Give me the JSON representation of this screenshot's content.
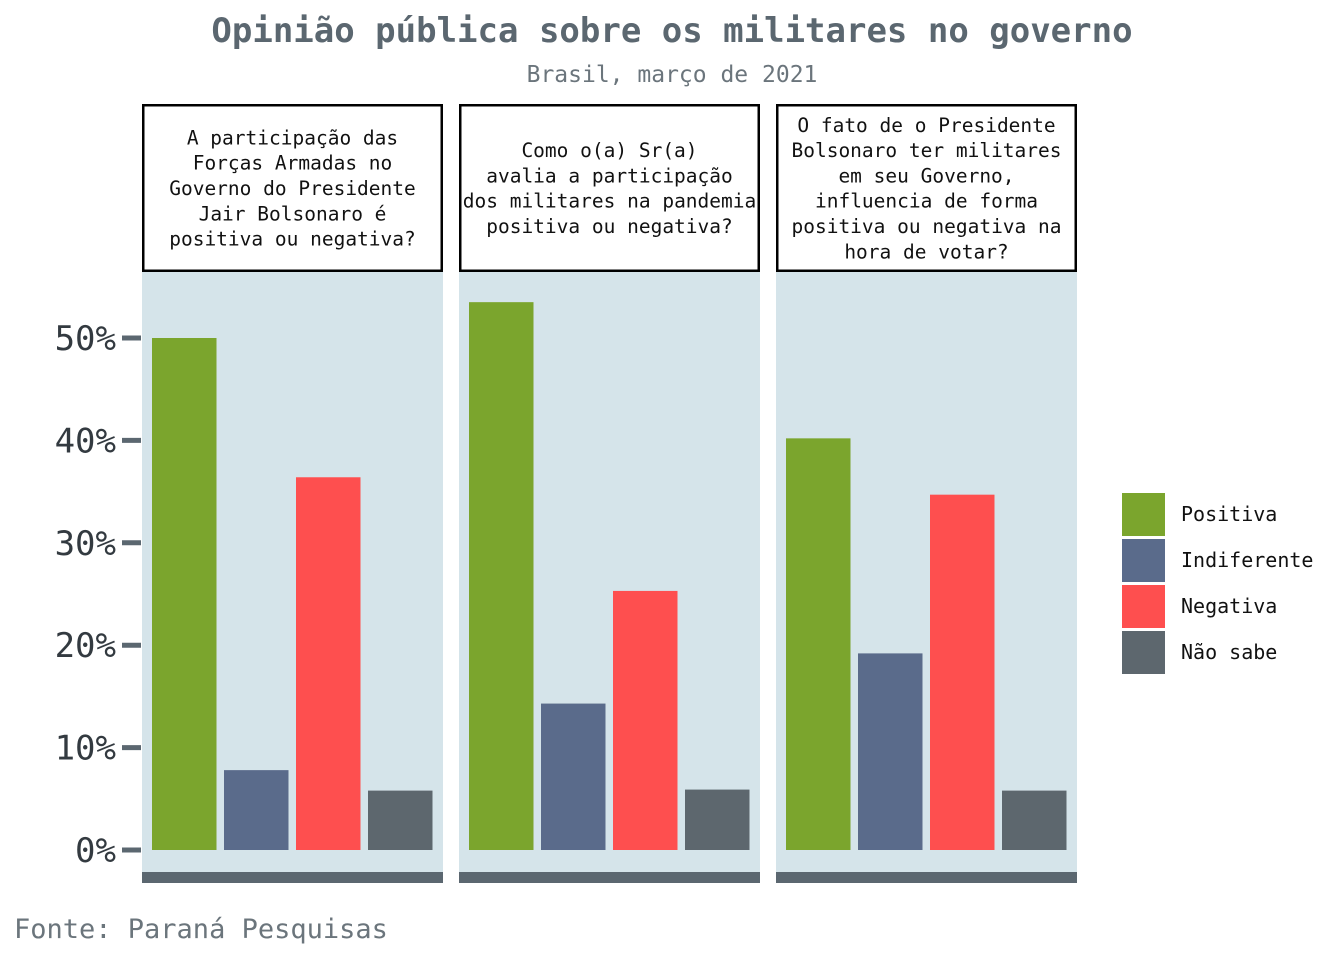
{
  "title": "Opinião pública sobre os militares no governo",
  "subtitle": "Brasil, março de 2021",
  "caption": "Fonte: Paraná Pesquisas",
  "colors": {
    "panel_bg": "#d5e4ea",
    "axis_bar": "#5b6770",
    "Positiva": "#7ba52d",
    "Indiferente": "#5a6b8b",
    "Negativa": "#fe4f4f",
    "Não sabe": "#5d676e"
  },
  "chart_data": {
    "type": "bar",
    "categories": [
      "Positiva",
      "Indiferente",
      "Negativa",
      "Não sabe"
    ],
    "ylim": [
      0,
      55
    ],
    "yticks": [
      0,
      10,
      20,
      30,
      40,
      50
    ],
    "ytick_labels": [
      "0%",
      "10%",
      "20%",
      "30%",
      "40%",
      "50%"
    ],
    "legend": {
      "position": "right",
      "entries": [
        "Positiva",
        "Indiferente",
        "Negativa",
        "Não sabe"
      ]
    },
    "panels": [
      {
        "strip": [
          "A participação das",
          "Forças Armadas no",
          "Governo do Presidente",
          "Jair Bolsonaro é",
          "positiva ou negativa?"
        ],
        "values": [
          50.0,
          7.8,
          36.4,
          5.8
        ]
      },
      {
        "strip": [
          "Como o(a) Sr(a)",
          "avalia a participação",
          "dos militares na pandemia",
          "positiva ou negativa?"
        ],
        "values": [
          53.5,
          14.3,
          25.3,
          5.9
        ]
      },
      {
        "strip": [
          "O fato de o Presidente",
          "Bolsonaro ter militares",
          "em seu Governo,",
          "influencia de forma",
          "positiva ou negativa na",
          "hora de votar?"
        ],
        "values": [
          40.2,
          19.2,
          34.7,
          5.8
        ]
      }
    ]
  }
}
